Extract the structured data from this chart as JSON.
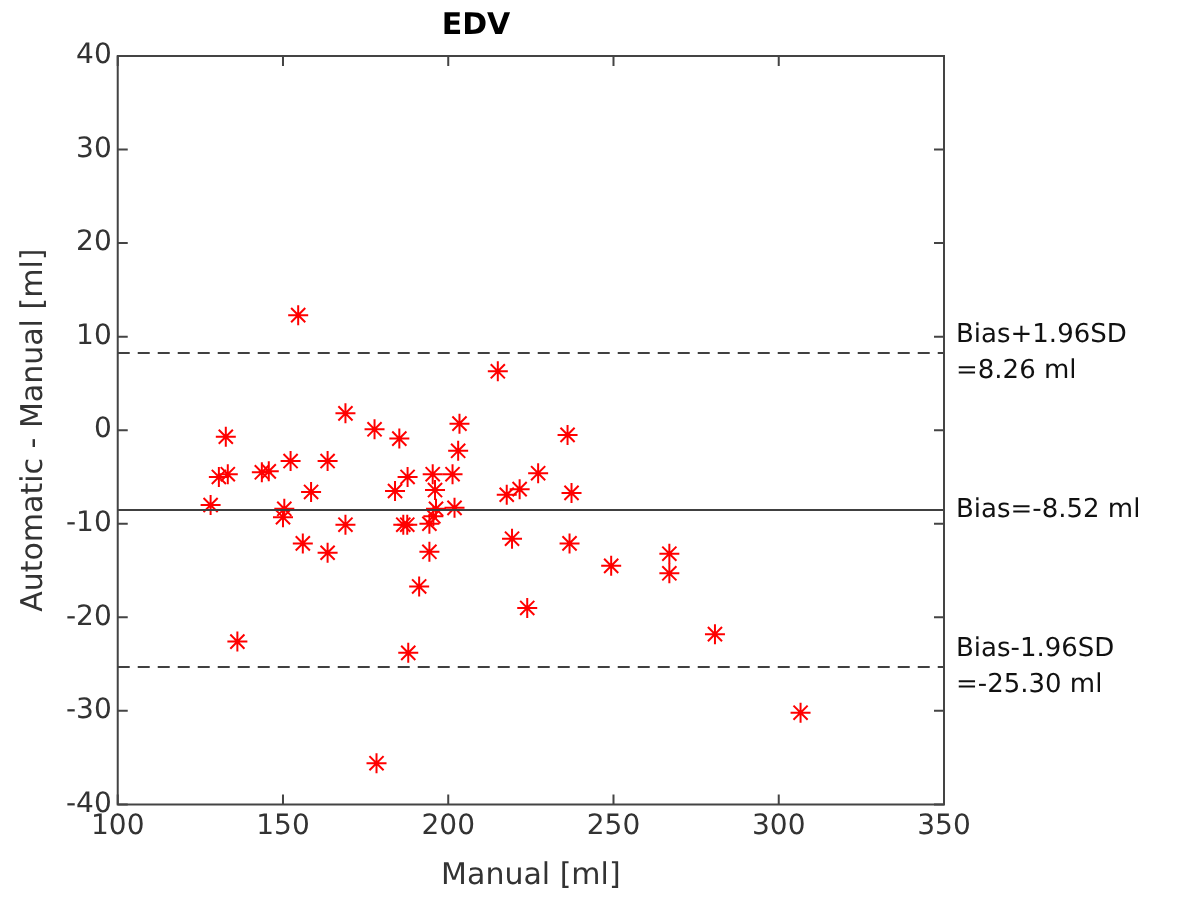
{
  "chart_data": {
    "type": "scatter",
    "title": "EDV",
    "xlabel": "Manual [ml]",
    "ylabel": "Automatic - Manual [ml]",
    "xlim": [
      100,
      350
    ],
    "xticks": [
      100,
      150,
      200,
      250,
      300,
      350
    ],
    "ylim": [
      -40,
      40
    ],
    "yticks": [
      -40,
      -30,
      -20,
      -10,
      0,
      10,
      20,
      30,
      40
    ],
    "grid": false,
    "legend": false,
    "marker": "cross",
    "series": [
      {
        "color": "#ff0000",
        "x": [
          154.6,
          168.9,
          177.7,
          185.2,
          203.4,
          132.7,
          203,
          152.3,
          163.5,
          145.7,
          143.6,
          130.6,
          133.3,
          187.7,
          195.3,
          201.3,
          158.5,
          183.9,
          196,
          128.1,
          150.4,
          201.9,
          150,
          168.9,
          156,
          163.5,
          186.4,
          187.6,
          195.5,
          194.3,
          196.3,
          194.3,
          191.2,
          136.2,
          187.9,
          178.3,
          215,
          236.1,
          227.2,
          217.7,
          221.6,
          237.3,
          219.3,
          236.7,
          249.3,
          266.9,
          266.9,
          223.9,
          280.7,
          306.6
        ],
        "values": [
          12.3,
          1.8,
          0.1,
          -0.9,
          0.7,
          -0.7,
          -2.2,
          -3.3,
          -3.3,
          -4.4,
          -4.5,
          -5.0,
          -4.7,
          -5.0,
          -4.7,
          -4.7,
          -6.6,
          -6.5,
          -6.4,
          -8.0,
          -8.4,
          -8.3,
          -9.3,
          -10.1,
          -12.1,
          -13.1,
          -10.1,
          -10.1,
          -9.2,
          -10.0,
          -8.4,
          -13.0,
          -16.7,
          -22.6,
          -23.8,
          -35.6,
          6.3,
          -0.5,
          -4.6,
          -6.9,
          -6.3,
          -6.7,
          -11.6,
          -12.1,
          -14.5,
          -13.2,
          -15.3,
          -19.0,
          -21.8,
          -30.2
        ]
      }
    ],
    "ref_lines": [
      {
        "axis": "y",
        "value": 8.26,
        "label": "Bias+1.96SD\n=8.26 ml",
        "color": "#404040",
        "line_style": "dashed"
      },
      {
        "axis": "y",
        "value": -8.52,
        "label": "Bias=-8.52 ml",
        "color": "#404040",
        "line_style": "solid"
      },
      {
        "axis": "y",
        "value": -25.3,
        "label": "Bias-1.96SD\n=-25.30 ml",
        "color": "#404040",
        "line_style": "dashed"
      }
    ]
  }
}
